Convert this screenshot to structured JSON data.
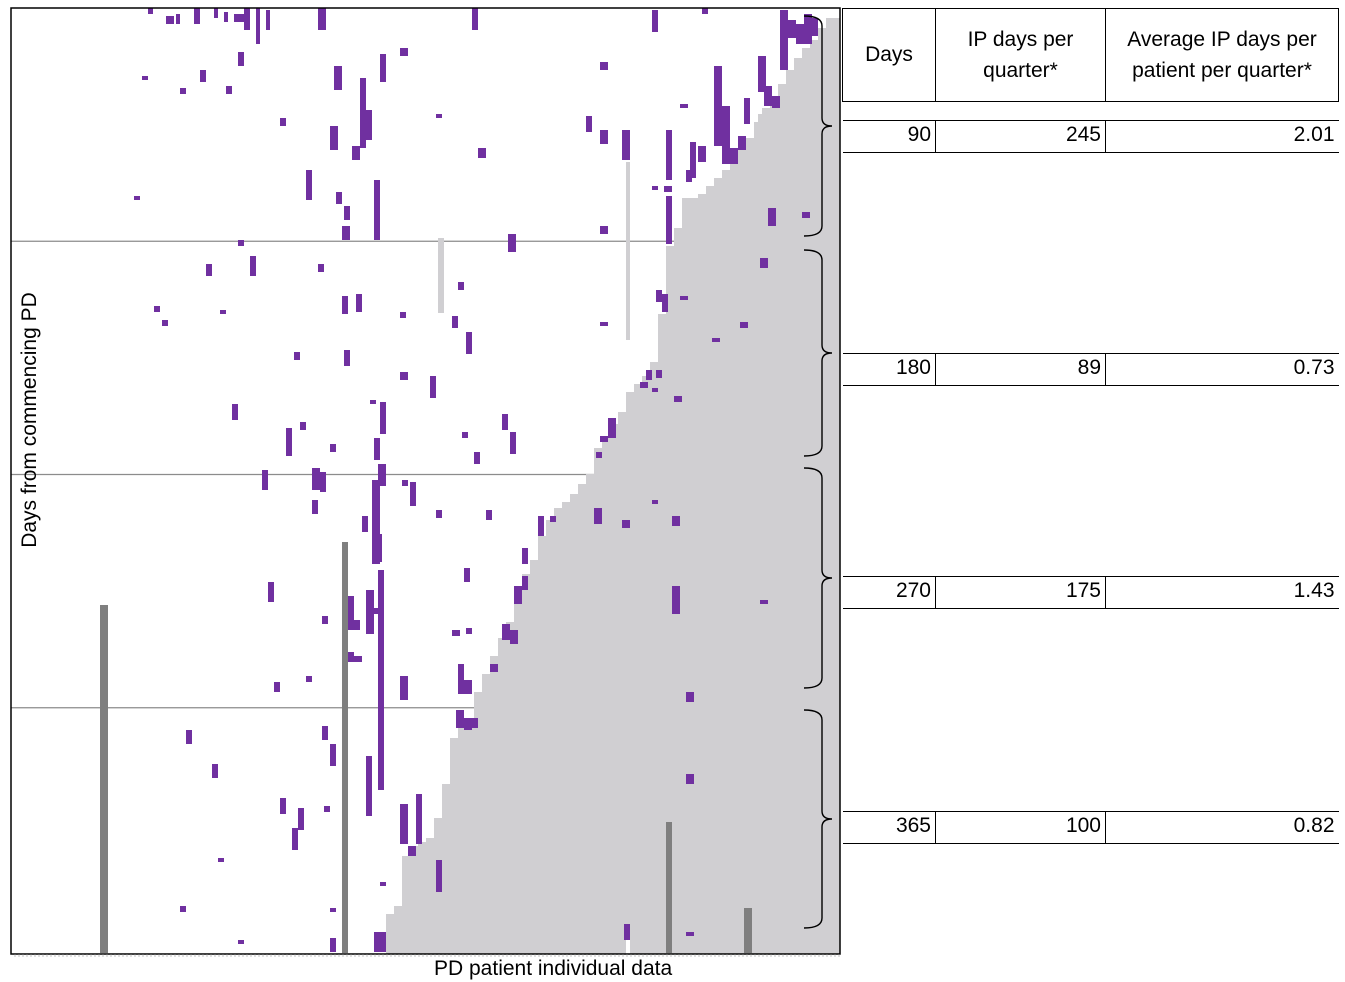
{
  "chart_data": {
    "type": "heatmap",
    "xlabel": "PD patient individual data",
    "ylabel": "Days from commencing PD",
    "ylim": [
      0,
      365
    ],
    "quarter_boundaries": [
      90,
      180,
      270
    ],
    "colors": {
      "inpatient": "#7030a0",
      "censored": "#d0cfd2",
      "other": "#bfbfbf",
      "dark_bar": "#7f7f7f",
      "gridline": "#8c8c8c"
    },
    "legend": "none",
    "table": {
      "headers": [
        "Days",
        "IP days per quarter*",
        "Average IP days per patient per quarter*"
      ],
      "rows": [
        {
          "days": "90",
          "ip_days": "245",
          "avg_ip_days": "2.01"
        },
        {
          "days": "180",
          "ip_days": "89",
          "avg_ip_days": "0.73"
        },
        {
          "days": "270",
          "ip_days": "175",
          "avg_ip_days": "1.43"
        },
        {
          "days": "365",
          "ip_days": "100",
          "avg_ip_days": "0.82"
        }
      ]
    }
  }
}
